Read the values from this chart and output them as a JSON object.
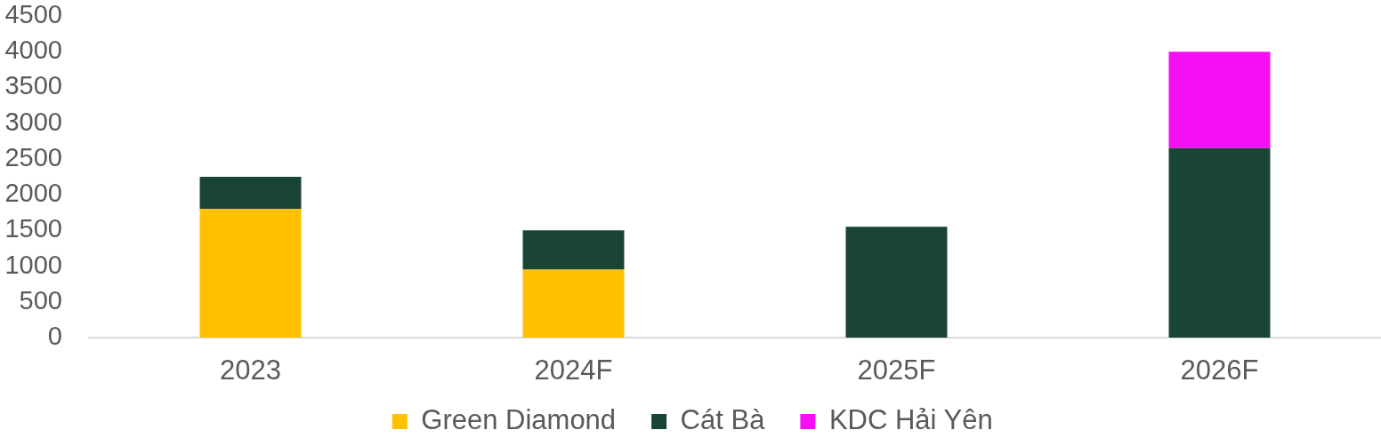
{
  "chart_data": {
    "type": "bar",
    "stacked": true,
    "categories": [
      "2023",
      "2024F",
      "2025F",
      "2026F"
    ],
    "series": [
      {
        "name": "Green Diamond",
        "color": "#ffc000",
        "values": [
          1800,
          950,
          null,
          null
        ]
      },
      {
        "name": "Cát Bà",
        "color": "#1a4535",
        "values": [
          450,
          550,
          1550,
          2650
        ]
      },
      {
        "name": "KDC Hải Yên",
        "color": "#f50ff5",
        "values": [
          null,
          null,
          null,
          1350
        ]
      }
    ],
    "ylim": [
      0,
      4500
    ],
    "yticks": [
      0,
      500,
      1000,
      1500,
      2000,
      2500,
      3000,
      3500,
      4000,
      4500
    ],
    "grid": false,
    "legend": "bottom"
  }
}
